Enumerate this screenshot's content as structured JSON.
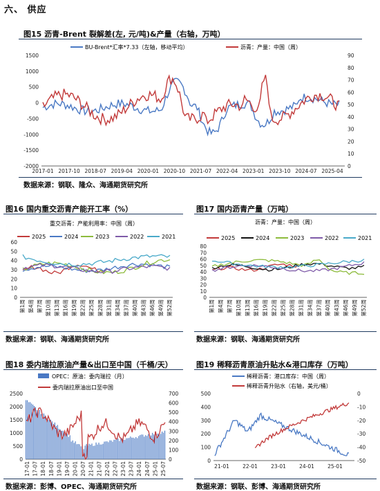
{
  "section": {
    "title": "六、  供应"
  },
  "charts": [
    {
      "title": "图15  沥青-Brent 裂解差(左, 元/吨)&产量（右轴，万吨）",
      "source": "数据来源：钢联、隆众、海通期货研究所",
      "legend": [
        "BU-Brent*汇率*7.33（左轴，移动平均）",
        "沥青：产量：中国（周）"
      ],
      "y_left_ticks": [
        "1500",
        "1000",
        "500",
        "0",
        "-500",
        "-1000",
        "-1500",
        "-2000"
      ],
      "y_right_ticks": [
        "90",
        "80",
        "70",
        "60",
        "50",
        "40",
        "30",
        "20",
        "10",
        "0"
      ],
      "x_ticks": [
        "2017-01",
        "2017-10",
        "2018-07",
        "2019-04",
        "2020-01",
        "2020-10",
        "2021-07",
        "2022-04",
        "2023-01",
        "2023-10",
        "2024-07",
        "2025-04"
      ]
    },
    {
      "title": "图16  国内重交沥青产能开工率（%）",
      "source": "数据来源：钢联、海通期货研究所",
      "subtitle": "重交沥青：产能利用率：中国（周）",
      "legend": [
        "2025",
        "2024",
        "2023",
        "2022",
        "2021"
      ],
      "y_ticks": [
        "60",
        "50",
        "40",
        "30",
        "20",
        "10",
        "0"
      ],
      "x_ticks": [
        "第1周",
        "第4周",
        "第7周",
        "第10周",
        "第13周",
        "第16周",
        "第19周",
        "第22周",
        "第25周",
        "第28周",
        "第31周",
        "第34周",
        "第37周",
        "第40周",
        "第43周",
        "第46周",
        "第49周",
        "第52周"
      ]
    },
    {
      "title": "图17  国内沥青产量（万吨）",
      "source": "数据来源：钢联、海通期货研究所",
      "subtitle": "沥青：产量：中国（周）",
      "legend": [
        "2025",
        "2024",
        "2023",
        "2022",
        "2021"
      ],
      "y_ticks": [
        "80",
        "70",
        "60",
        "50",
        "40",
        "30",
        "20",
        "10",
        "0"
      ],
      "x_ticks": [
        "第1周",
        "第4周",
        "第7周",
        "第10周",
        "第13周",
        "第16周",
        "第19周",
        "第22周",
        "第25周",
        "第28周",
        "第31周",
        "第34周",
        "第37周",
        "第40周",
        "第43周",
        "第46周",
        "第49周",
        "第52周"
      ]
    },
    {
      "title": "图18  委内瑞拉原油产量&出口至中国（千桶/天）",
      "source": "数据来源：彭博、OPEC、海通期货研究所",
      "legend": [
        "OPEC：原油：委内瑞拉（月）",
        "委内瑞拉原油出口至中国"
      ],
      "y_left_ticks": [
        "2500",
        "2000",
        "1500",
        "1000",
        "500",
        "0"
      ],
      "y_right_ticks": [
        "700",
        "600",
        "500",
        "400",
        "300",
        "200",
        "100",
        "0"
      ],
      "x_ticks": [
        "17-01",
        "17-07",
        "18-01",
        "18-07",
        "19-01",
        "19-07",
        "20-01",
        "20-07",
        "21-01",
        "21-07",
        "22-01",
        "22-07",
        "23-01",
        "23-07",
        "24-01",
        "24-07",
        "25-01",
        "25-07"
      ]
    },
    {
      "title": "图19  稀释沥青原油升贴水&港口库存（万吨）",
      "source": "数据来源：钢联、彭博、海通期货研究所",
      "legend": [
        "稀释沥青：港口库存：中国（周）",
        "稀释沥青升贴水（右轴，美元/桶）"
      ],
      "y_left_ticks": [
        "500",
        "400",
        "300",
        "200",
        "100",
        "0"
      ],
      "y_right_ticks": [
        "0",
        "-10",
        "-20",
        "-30",
        "-40",
        "-50"
      ],
      "x_ticks": [
        "21-01",
        "22-01",
        "23-01",
        "24-01",
        "25-01"
      ]
    }
  ],
  "colors": {
    "red": "#c23a3a",
    "blue": "#4a79c4",
    "green": "#8dbb3c",
    "purple": "#7e5aa8",
    "cyan": "#49a9c9",
    "black": "#111111",
    "bar": "#4a79c4",
    "rule": "#1f3a5f"
  }
}
